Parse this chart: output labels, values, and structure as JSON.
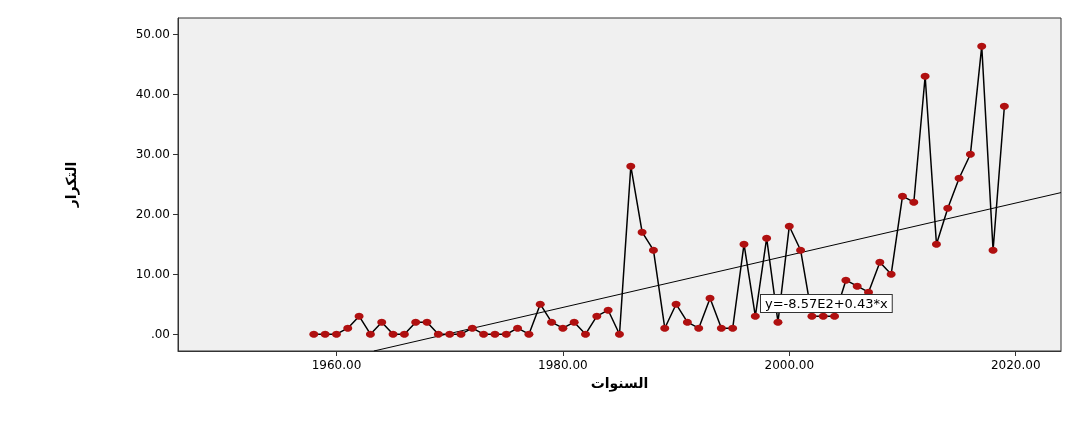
{
  "chart_data": {
    "type": "line",
    "xlabel": "السنوات",
    "ylabel": "التكرار",
    "xlim": [
      1946,
      2024
    ],
    "xticks": [
      {
        "value": 1960,
        "label": "1960.00"
      },
      {
        "value": 1980,
        "label": "1980.00"
      },
      {
        "value": 2000,
        "label": "2000.00"
      },
      {
        "value": 2020,
        "label": "2020.00"
      }
    ],
    "ylim": [
      -2.8,
      52.7
    ],
    "yticks": [
      {
        "value": 0,
        "label": ".00"
      },
      {
        "value": 10,
        "label": "10.00"
      },
      {
        "value": 20,
        "label": "20.00"
      },
      {
        "value": 30,
        "label": "30.00"
      },
      {
        "value": 40,
        "label": "40.00"
      },
      {
        "value": 50,
        "label": "50.00"
      }
    ],
    "marker": "circle",
    "line_style": "solid",
    "series": [
      {
        "color": "#b01010",
        "x": [
          1958,
          1959,
          1960,
          1961,
          1962,
          1963,
          1964,
          1965,
          1966,
          1967,
          1968,
          1969,
          1970,
          1971,
          1972,
          1973,
          1974,
          1975,
          1976,
          1977,
          1978,
          1979,
          1980,
          1981,
          1982,
          1983,
          1984,
          1985,
          1986,
          1987,
          1988,
          1989,
          1990,
          1991,
          1992,
          1993,
          1994,
          1995,
          1996,
          1997,
          1998,
          1999,
          2000,
          2001,
          2002,
          2003,
          2004,
          2005,
          2006,
          2007,
          2008,
          2009,
          2010,
          2011,
          2012,
          2013,
          2014,
          2015,
          2016,
          2017,
          2018,
          2019
        ],
        "values": [
          0,
          0,
          0,
          1,
          3,
          0,
          2,
          0,
          0,
          2,
          2,
          0,
          0,
          0,
          1,
          0,
          0,
          0,
          1,
          0,
          5,
          2,
          1,
          2,
          0,
          3,
          4,
          0,
          28,
          17,
          14,
          1,
          5,
          2,
          1,
          6,
          1,
          1,
          15,
          3,
          16,
          2,
          18,
          14,
          3,
          3,
          3,
          9,
          8,
          7,
          12,
          10,
          23,
          22,
          43,
          15,
          21,
          26,
          30,
          48,
          14,
          38
        ]
      },
      {
        "color": "#000000",
        "marker": "none",
        "x": [
          1963.3,
          2024
        ],
        "values": [
          -2.8,
          23.6
        ]
      }
    ],
    "annotations": [
      "y=-8.57E2+0.43*x"
    ]
  }
}
